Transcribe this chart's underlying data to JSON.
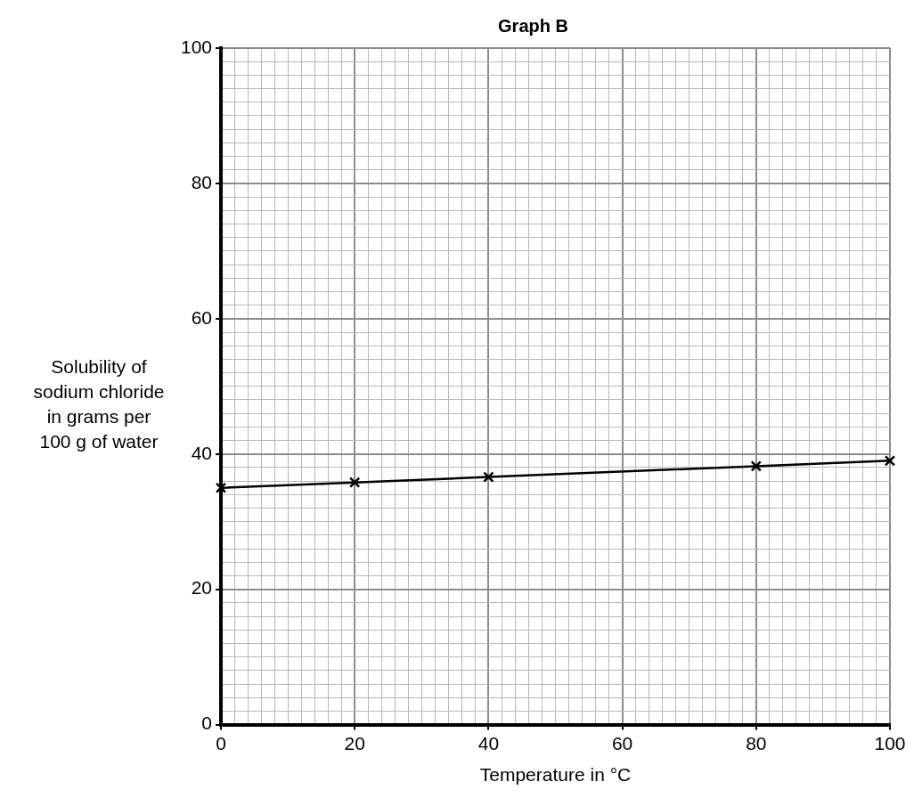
{
  "chart_data": {
    "type": "line",
    "title": "Graph B",
    "xlabel": "Temperature in °C",
    "ylabel": "Solubility of sodium chloride in grams per 100 g of water",
    "x": [
      0,
      20,
      40,
      80,
      100
    ],
    "series": [
      {
        "color": "#000000",
        "values": [
          35,
          35.8,
          36.6,
          38.2,
          39
        ]
      }
    ],
    "xlim": [
      0,
      100
    ],
    "ylim": [
      0,
      100
    ],
    "xticks": [
      0,
      {
        "value": 2,
        "label": null
      },
      {
        "value": 4,
        "label": null
      },
      {
        "value": 6,
        "label": null
      },
      {
        "value": 8,
        "label": null
      },
      {
        "value": 10,
        "label": null
      },
      {
        "value": 12,
        "label": null
      },
      {
        "value": 14,
        "label": null
      },
      {
        "value": 16,
        "label": null
      },
      {
        "value": 18,
        "label": null
      },
      20,
      {
        "value": 22,
        "label": null
      },
      {
        "value": 24,
        "label": null
      },
      {
        "value": 26,
        "label": null
      },
      {
        "value": 28,
        "label": null
      },
      {
        "value": 30,
        "label": null
      },
      {
        "value": 32,
        "label": null
      },
      {
        "value": 34,
        "label": null
      },
      {
        "value": 36,
        "label": null
      },
      {
        "value": 38,
        "label": null
      },
      40,
      {
        "value": 42,
        "label": null
      },
      {
        "value": 44,
        "label": null
      },
      {
        "value": 46,
        "label": null
      },
      {
        "value": 48,
        "label": null
      },
      {
        "value": 50,
        "label": null
      },
      {
        "value": 52,
        "label": null
      },
      {
        "value": 54,
        "label": null
      },
      {
        "value": 56,
        "label": null
      },
      {
        "value": 58,
        "label": null
      },
      60,
      {
        "value": 62,
        "label": null
      },
      {
        "value": 64,
        "label": null
      },
      {
        "value": 66,
        "label": null
      },
      {
        "value": 68,
        "label": null
      },
      {
        "value": 70,
        "label": null
      },
      {
        "value": 72,
        "label": null
      },
      {
        "value": 74,
        "label": null
      },
      {
        "value": 76,
        "label": null
      },
      {
        "value": 78,
        "label": null
      },
      80,
      {
        "value": 82,
        "label": null
      },
      {
        "value": 84,
        "label": null
      },
      {
        "value": 86,
        "label": null
      },
      {
        "value": 88,
        "label": null
      },
      {
        "value": 90,
        "label": null
      },
      {
        "value": 92,
        "label": null
      },
      {
        "value": 94,
        "label": null
      },
      {
        "value": 96,
        "label": null
      },
      {
        "value": 98,
        "label": null
      },
      100
    ],
    "yticks": [
      0,
      {
        "value": 2,
        "label": null
      },
      {
        "value": 4,
        "label": null
      },
      {
        "value": 6,
        "label": null
      },
      {
        "value": 8,
        "label": null
      },
      {
        "value": 10,
        "label": null
      },
      {
        "value": 12,
        "label": null
      },
      {
        "value": 14,
        "label": null
      },
      {
        "value": 16,
        "label": null
      },
      {
        "value": 18,
        "label": null
      },
      20,
      {
        "value": 22,
        "label": null
      },
      {
        "value": 24,
        "label": null
      },
      {
        "value": 26,
        "label": null
      },
      {
        "value": 28,
        "label": null
      },
      {
        "value": 30,
        "label": null
      },
      {
        "value": 32,
        "label": null
      },
      {
        "value": 34,
        "label": null
      },
      {
        "value": 36,
        "label": null
      },
      {
        "value": 38,
        "label": null
      },
      40,
      {
        "value": 42,
        "label": null
      },
      {
        "value": 44,
        "label": null
      },
      {
        "value": 46,
        "label": null
      },
      {
        "value": 48,
        "label": null
      },
      {
        "value": 50,
        "label": null
      },
      {
        "value": 52,
        "label": null
      },
      {
        "value": 54,
        "label": null
      },
      {
        "value": 56,
        "label": null
      },
      {
        "value": 58,
        "label": null
      },
      60,
      {
        "value": 62,
        "label": null
      },
      {
        "value": 64,
        "label": null
      },
      {
        "value": 66,
        "label": null
      },
      {
        "value": 68,
        "label": null
      },
      {
        "value": 70,
        "label": null
      },
      {
        "value": 72,
        "label": null
      },
      {
        "value": 74,
        "label": null
      },
      {
        "value": 76,
        "label": null
      },
      {
        "value": 78,
        "label": null
      },
      80,
      {
        "value": 82,
        "label": null
      },
      {
        "value": 84,
        "label": null
      },
      {
        "value": 86,
        "label": null
      },
      {
        "value": 88,
        "label": null
      },
      {
        "value": 90,
        "label": null
      },
      {
        "value": 92,
        "label": null
      },
      {
        "value": 94,
        "label": null
      },
      {
        "value": 96,
        "label": null
      },
      {
        "value": 98,
        "label": null
      },
      100
    ],
    "grid": true,
    "legend": false,
    "marker": "cross",
    "line_style": "solid"
  }
}
